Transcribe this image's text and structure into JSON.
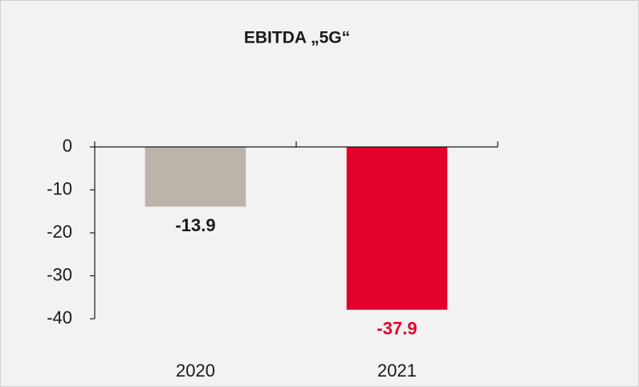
{
  "chart_data": {
    "type": "bar",
    "title": "EBITDA „5G“",
    "categories": [
      "2020",
      "2021"
    ],
    "values": [
      -13.9,
      -37.9
    ],
    "colors": [
      "#bcb4aa",
      "#e3002b"
    ],
    "label_colors": [
      "#1a1a1a",
      "#e3002b"
    ],
    "ylim": [
      -40,
      0
    ],
    "yticks": [
      0,
      -10,
      -20,
      -30,
      -40
    ],
    "grid": false
  }
}
